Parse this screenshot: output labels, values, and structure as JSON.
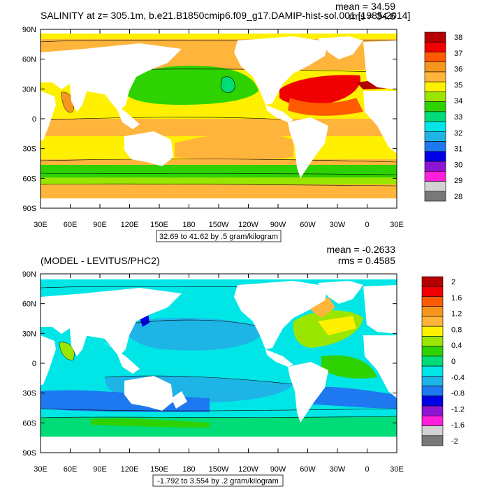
{
  "chart_data": [
    {
      "type": "heatmap",
      "title": "SALINITY at z= 305.1m, b.e21.B1850cmip6.f09_g17.DAMIP-hist-sol.001 [1985-2014]",
      "stats": {
        "mean": "mean = 34.59",
        "rms": "rms = 34.6"
      },
      "range_note": "32.69 to 41.62 by .5 gram/kilogram",
      "x_ticks": [
        "30E",
        "60E",
        "90E",
        "120E",
        "150E",
        "180",
        "150W",
        "120W",
        "90W",
        "60W",
        "30W",
        "0",
        "30E"
      ],
      "y_ticks": [
        "90N",
        "60N",
        "30N",
        "0",
        "30S",
        "60S",
        "90S"
      ],
      "colorbar": {
        "labels": [
          "38",
          "37",
          "36",
          "35",
          "34",
          "33",
          "32",
          "31",
          "30",
          "29",
          "28"
        ],
        "colors": [
          "#b40000",
          "#f00000",
          "#ff5a00",
          "#f5961e",
          "#ffb43c",
          "#fff000",
          "#9be600",
          "#2dd200",
          "#00dc78",
          "#00e6e6",
          "#1eb4e6",
          "#1e78f0",
          "#0000e6",
          "#8c14d2",
          "#ff1edc",
          "#d2d2d2",
          "#787878"
        ]
      }
    },
    {
      "type": "heatmap",
      "title": "(MODEL - LEVITUS/PHC2)",
      "stats": {
        "mean": "mean = -0.2633",
        "rms": "rms = 0.4585"
      },
      "range_note": "-1.792 to 3.554 by .2 gram/kilogram",
      "x_ticks": [
        "30E",
        "60E",
        "90E",
        "120E",
        "150E",
        "180",
        "150W",
        "120W",
        "90W",
        "60W",
        "30W",
        "0",
        "30E"
      ],
      "y_ticks": [
        "90N",
        "60N",
        "30N",
        "0",
        "30S",
        "60S",
        "90S"
      ],
      "colorbar": {
        "labels": [
          "2",
          "1.6",
          "1.2",
          "0.8",
          "0.4",
          "0",
          "-0.4",
          "-0.8",
          "-1.2",
          "-1.6",
          "-2"
        ],
        "colors": [
          "#b40000",
          "#f00000",
          "#ff5a00",
          "#f5961e",
          "#ffb43c",
          "#fff000",
          "#9be600",
          "#2dd200",
          "#00dc78",
          "#00e6e6",
          "#1eb4e6",
          "#1e78f0",
          "#0000e6",
          "#8c14d2",
          "#ff1edc",
          "#d2d2d2",
          "#787878"
        ]
      }
    }
  ]
}
